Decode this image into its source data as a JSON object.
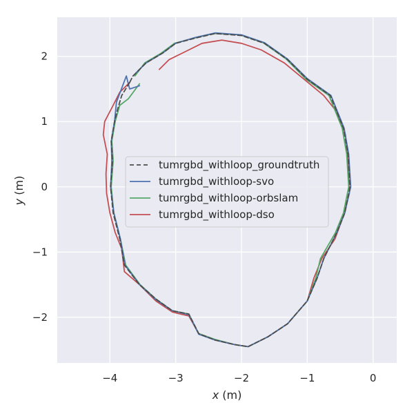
{
  "chart_data": {
    "type": "line",
    "xlabel_var": "x",
    "xlabel_unit": " (m)",
    "ylabel_var": "y",
    "ylabel_unit": " (m)",
    "xlim": [
      -4.8,
      0.36
    ],
    "ylim": [
      -2.7,
      2.6
    ],
    "xticks": [
      -4,
      -3,
      -2,
      -1,
      0
    ],
    "yticks": [
      -2,
      -1,
      0,
      1,
      2
    ],
    "xtick_labels": [
      "−4",
      "−3",
      "−2",
      "−1",
      "0"
    ],
    "ytick_labels": [
      "−2",
      "−1",
      "0",
      "1",
      "2"
    ],
    "grid": true,
    "background_color": "#eaeaf2",
    "legend_position": "center",
    "series": [
      {
        "name": "tumrgbd_withloop_groundtruth",
        "color": "#4c4c4c",
        "dashed": true,
        "points": [
          [
            -3.7,
            1.6
          ],
          [
            -3.82,
            1.4
          ],
          [
            -3.88,
            1.2
          ],
          [
            -3.93,
            1.0
          ],
          [
            -3.98,
            0.7
          ],
          [
            -3.96,
            0.4
          ],
          [
            -3.99,
            0.0
          ],
          [
            -3.95,
            -0.4
          ],
          [
            -3.85,
            -0.8
          ],
          [
            -3.78,
            -1.2
          ],
          [
            -3.55,
            -1.5
          ],
          [
            -3.3,
            -1.72
          ],
          [
            -3.05,
            -1.9
          ],
          [
            -2.8,
            -1.95
          ],
          [
            -2.65,
            -2.25
          ],
          [
            -2.4,
            -2.35
          ],
          [
            -2.1,
            -2.42
          ],
          [
            -1.9,
            -2.45
          ],
          [
            -1.6,
            -2.3
          ],
          [
            -1.3,
            -2.1
          ],
          [
            -1.0,
            -1.75
          ],
          [
            -0.85,
            -1.4
          ],
          [
            -0.75,
            -1.1
          ],
          [
            -0.55,
            -0.7
          ],
          [
            -0.43,
            -0.4
          ],
          [
            -0.35,
            0.0
          ],
          [
            -0.38,
            0.5
          ],
          [
            -0.45,
            0.9
          ],
          [
            -0.65,
            1.4
          ],
          [
            -1.0,
            1.65
          ],
          [
            -1.3,
            1.95
          ],
          [
            -1.65,
            2.2
          ],
          [
            -2.0,
            2.32
          ],
          [
            -2.4,
            2.35
          ],
          [
            -2.7,
            2.28
          ],
          [
            -3.0,
            2.2
          ],
          [
            -3.2,
            2.05
          ],
          [
            -3.45,
            1.9
          ],
          [
            -3.65,
            1.7
          ],
          [
            -3.7,
            1.6
          ]
        ]
      },
      {
        "name": "tumrgbd_withloop-svo",
        "color": "#4c72b0",
        "dashed": false,
        "points": [
          [
            -3.55,
            1.55
          ],
          [
            -3.7,
            1.5
          ],
          [
            -3.75,
            1.7
          ],
          [
            -3.9,
            1.3
          ],
          [
            -3.93,
            1.0
          ],
          [
            -3.98,
            0.7
          ],
          [
            -3.97,
            0.4
          ],
          [
            -3.99,
            0.0
          ],
          [
            -3.94,
            -0.4
          ],
          [
            -3.84,
            -0.8
          ],
          [
            -3.77,
            -1.2
          ],
          [
            -3.55,
            -1.5
          ],
          [
            -3.3,
            -1.73
          ],
          [
            -3.05,
            -1.9
          ],
          [
            -2.8,
            -1.96
          ],
          [
            -2.65,
            -2.26
          ],
          [
            -2.4,
            -2.35
          ],
          [
            -2.1,
            -2.42
          ],
          [
            -1.9,
            -2.45
          ],
          [
            -1.6,
            -2.3
          ],
          [
            -1.3,
            -2.1
          ],
          [
            -1.0,
            -1.75
          ],
          [
            -0.85,
            -1.4
          ],
          [
            -0.75,
            -1.1
          ],
          [
            -0.55,
            -0.7
          ],
          [
            -0.43,
            -0.4
          ],
          [
            -0.34,
            0.0
          ],
          [
            -0.37,
            0.5
          ],
          [
            -0.44,
            0.9
          ],
          [
            -0.64,
            1.4
          ],
          [
            -1.0,
            1.66
          ],
          [
            -1.3,
            1.96
          ],
          [
            -1.65,
            2.21
          ],
          [
            -2.0,
            2.33
          ],
          [
            -2.4,
            2.36
          ],
          [
            -2.7,
            2.29
          ],
          [
            -3.0,
            2.2
          ],
          [
            -3.2,
            2.05
          ],
          [
            -3.45,
            1.9
          ],
          [
            -3.6,
            1.75
          ]
        ]
      },
      {
        "name": "tumrgbd_withloop-orbslam",
        "color": "#55a868",
        "dashed": false,
        "points": [
          [
            -3.55,
            1.58
          ],
          [
            -3.72,
            1.35
          ],
          [
            -3.85,
            1.25
          ],
          [
            -3.92,
            1.0
          ],
          [
            -3.97,
            0.7
          ],
          [
            -3.95,
            0.4
          ],
          [
            -3.98,
            0.0
          ],
          [
            -3.94,
            -0.4
          ],
          [
            -3.84,
            -0.8
          ],
          [
            -3.76,
            -1.2
          ],
          [
            -3.54,
            -1.5
          ],
          [
            -3.3,
            -1.72
          ],
          [
            -3.05,
            -1.9
          ],
          [
            -2.8,
            -1.95
          ],
          [
            -2.65,
            -2.25
          ],
          [
            -2.4,
            -2.34
          ],
          [
            -2.1,
            -2.42
          ],
          [
            -1.9,
            -2.45
          ],
          [
            -1.6,
            -2.3
          ],
          [
            -1.3,
            -2.1
          ],
          [
            -1.0,
            -1.75
          ],
          [
            -0.87,
            -1.4
          ],
          [
            -0.8,
            -1.1
          ],
          [
            -0.57,
            -0.7
          ],
          [
            -0.45,
            -0.4
          ],
          [
            -0.37,
            0.0
          ],
          [
            -0.4,
            0.5
          ],
          [
            -0.47,
            0.9
          ],
          [
            -0.67,
            1.4
          ],
          [
            -1.02,
            1.65
          ],
          [
            -1.32,
            1.96
          ],
          [
            -1.67,
            2.21
          ],
          [
            -2.02,
            2.33
          ],
          [
            -2.42,
            2.35
          ],
          [
            -2.72,
            2.28
          ],
          [
            -3.02,
            2.2
          ],
          [
            -3.22,
            2.05
          ],
          [
            -3.47,
            1.9
          ],
          [
            -3.62,
            1.7
          ]
        ]
      },
      {
        "name": "tumrgbd_withloop-dso",
        "color": "#c44e52",
        "dashed": false,
        "points": [
          [
            -3.7,
            1.6
          ],
          [
            -3.85,
            1.45
          ],
          [
            -3.95,
            1.25
          ],
          [
            -4.08,
            1.0
          ],
          [
            -4.1,
            0.8
          ],
          [
            -4.04,
            0.5
          ],
          [
            -4.06,
            0.2
          ],
          [
            -4.05,
            -0.1
          ],
          [
            -4.0,
            -0.4
          ],
          [
            -3.92,
            -0.7
          ],
          [
            -3.82,
            -0.95
          ],
          [
            -3.78,
            -1.3
          ],
          [
            -3.55,
            -1.5
          ],
          [
            -3.3,
            -1.75
          ],
          [
            -3.05,
            -1.92
          ],
          [
            -2.8,
            -1.98
          ],
          [
            -2.65,
            -2.25
          ],
          [
            -2.4,
            -2.35
          ],
          [
            -2.1,
            -2.42
          ],
          [
            -1.9,
            -2.45
          ],
          [
            -1.6,
            -2.3
          ],
          [
            -1.3,
            -2.1
          ],
          [
            -1.0,
            -1.75
          ],
          [
            -0.9,
            -1.4
          ],
          [
            -0.78,
            -1.1
          ],
          [
            -0.58,
            -0.8
          ],
          [
            -0.47,
            -0.5
          ],
          [
            -0.36,
            -0.1
          ],
          [
            -0.38,
            0.4
          ],
          [
            -0.42,
            0.8
          ],
          [
            -0.55,
            1.15
          ],
          [
            -0.75,
            1.4
          ],
          [
            -1.05,
            1.65
          ],
          [
            -1.35,
            1.9
          ],
          [
            -1.7,
            2.1
          ],
          [
            -2.0,
            2.2
          ],
          [
            -2.3,
            2.25
          ],
          [
            -2.6,
            2.2
          ],
          [
            -2.9,
            2.05
          ],
          [
            -3.1,
            1.95
          ],
          [
            -3.25,
            1.8
          ]
        ]
      }
    ]
  }
}
